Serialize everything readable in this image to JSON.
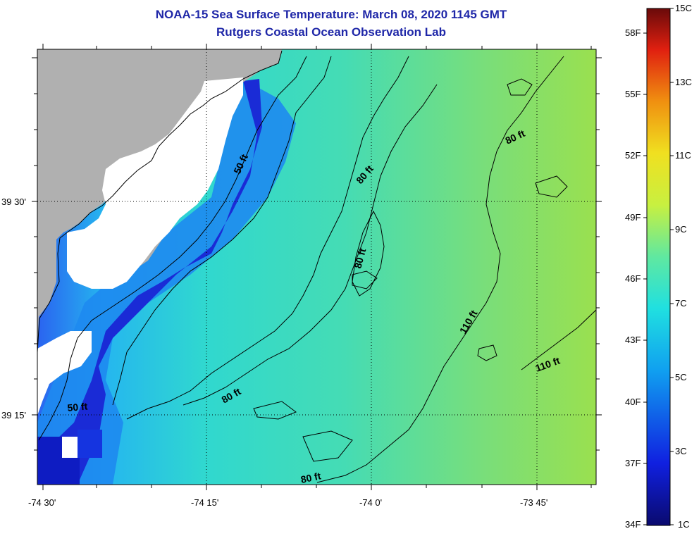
{
  "header": {
    "title": "NOAA-15 Sea Surface Temperature:  March 08, 2020 1145 GMT",
    "subtitle": "Rutgers Coastal Ocean Observation Lab"
  },
  "map": {
    "x_tick_labels": [
      "-74 30'",
      "-74 15'",
      "-74 0'",
      "-73 45'"
    ],
    "y_tick_labels": [
      "39 30'",
      "39 15'"
    ],
    "contour_labels": [
      "50 ft",
      "80 ft",
      "80 ft",
      "80 ft",
      "80 ft",
      "110 ft",
      "110 ft",
      "50 ft",
      "80 ft"
    ],
    "colors": {
      "land": "#b0b0b0",
      "cloud_mask": "#ffffff",
      "cold": "#1a2bd6",
      "mid": "#37d8c8",
      "warm": "#9ae04f"
    }
  },
  "colorbar": {
    "fahrenheit_labels": [
      "58F",
      "55F",
      "52F",
      "49F",
      "46F",
      "43F",
      "40F",
      "37F",
      "34F"
    ],
    "celsius_labels": [
      "15C",
      "13C",
      "11C",
      "9C",
      "7C",
      "5C",
      "3C",
      "1C"
    ]
  }
}
